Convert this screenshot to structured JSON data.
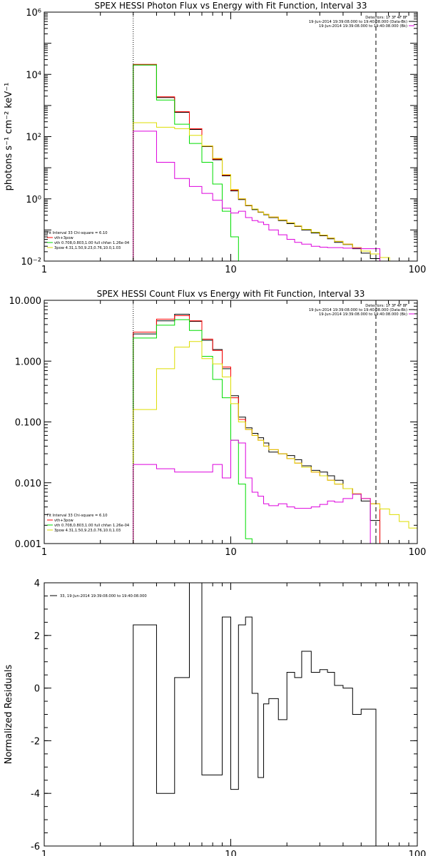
{
  "chart_data": [
    {
      "type": "line",
      "title": "SPEX HESSI Photon Flux vs Energy with Fit Function, Interval 33",
      "ylabel": "photons s⁻¹ cm⁻² keV⁻¹",
      "xscale": "log",
      "yscale": "log",
      "xlim": [
        1,
        100
      ],
      "ylim": [
        0.01,
        1000000
      ],
      "x_ticks": [
        "1",
        "10",
        "100"
      ],
      "y_ticks": [
        "10⁻²",
        "10⁰",
        "10²",
        "10⁴",
        "10⁶"
      ],
      "legend_right": [
        "Detectors: 1F 3F 4F 8F",
        "19-Jun-2014 19:39:08.000 to 19:40:08.000 (Data-Bk)",
        "19-Jun-2014 19:39:08.000 to 19:40:08.000 (Bk)"
      ],
      "legend_left": [
        "Fit Interval 33   Chi-square = 6.10",
        "vth+3pow",
        "vth 0.708,0.803,1.00  full chfan 1.26e-04",
        "3pow 4.31,1.50,9.23,0.76,10.0,1.03"
      ],
      "vlines": [
        3.0,
        60.0
      ],
      "edges": [
        3,
        4,
        5,
        6,
        7,
        8,
        9,
        10,
        11,
        12,
        13,
        14,
        15,
        16,
        18,
        20,
        22,
        24,
        27,
        30,
        33,
        36,
        40,
        45,
        50,
        56,
        63,
        71,
        80
      ],
      "series": [
        {
          "color": "#000000",
          "values": [
            20000,
            1800,
            600,
            170,
            48,
            18,
            5.5,
            1.8,
            0.95,
            0.6,
            0.45,
            0.37,
            0.31,
            0.25,
            0.2,
            0.16,
            0.13,
            0.1,
            0.08,
            0.065,
            0.052,
            0.04,
            0.034,
            0.025,
            0.018,
            0.012
          ]
        },
        {
          "color": "#ff0000",
          "values": [
            21000,
            1900,
            630,
            180,
            50,
            19,
            5.8,
            1.9,
            1.0,
            0.62,
            0.47,
            0.38,
            0.32,
            0.26,
            0.21,
            0.17,
            0.135,
            0.105,
            0.085,
            0.068,
            0.055,
            0.043,
            0.035,
            0.027,
            0.021,
            0.017
          ]
        },
        {
          "color": "#00dd00",
          "values": [
            20000,
            1500,
            250,
            60,
            15,
            3.0,
            0.4,
            0.06,
            0.01
          ]
        },
        {
          "color": "#dddd00",
          "values": [
            280,
            200,
            180,
            110,
            50,
            20,
            6.0,
            2.0,
            1.0,
            0.62,
            0.47,
            0.38,
            0.32,
            0.26,
            0.21,
            0.17,
            0.135,
            0.105,
            0.085,
            0.068,
            0.055,
            0.043,
            0.035,
            0.027,
            0.021,
            0.017,
            0.013,
            0.01
          ]
        },
        {
          "color": "#dd00dd",
          "values": [
            150,
            15,
            4.5,
            2.5,
            1.5,
            0.9,
            0.5,
            0.35,
            0.4,
            0.25,
            0.2,
            0.18,
            0.15,
            0.1,
            0.07,
            0.05,
            0.04,
            0.035,
            0.03,
            0.028,
            0.027,
            0.027,
            0.026,
            0.026,
            0.025,
            0.025
          ]
        }
      ]
    },
    {
      "type": "line",
      "title": "SPEX HESSI Count Flux vs Energy with Fit Function, Interval 33",
      "xscale": "log",
      "yscale": "log",
      "xlim": [
        1,
        100
      ],
      "ylim": [
        0.001,
        10
      ],
      "x_ticks": [
        "1",
        "10",
        "100"
      ],
      "y_ticks": [
        "0.001",
        "0.010",
        "0.100",
        "1.000",
        "10.000"
      ],
      "legend_right": [
        "Detectors: 1F 3F 4F 8F",
        "19-Jun-2014 19:39:08.000 to 19:40:08.000 (Data-Bk)",
        "19-Jun-2014 19:39:08.000 to 19:40:08.000 (Bk)"
      ],
      "legend_left": [
        "Fit Interval 33   Chi-square = 6.10",
        "vth+3pow",
        "vth 0.708,0.803,1.00  full chfan 1.26e-04",
        "3pow 4.31,1.50,9.23,0.76,10.0,1.03"
      ],
      "vlines": [
        3.0,
        60.0
      ],
      "edges": [
        3,
        4,
        5,
        6,
        7,
        8,
        9,
        10,
        11,
        12,
        13,
        14,
        15,
        16,
        18,
        20,
        22,
        24,
        27,
        30,
        33,
        36,
        40,
        45,
        50,
        56,
        63,
        71,
        80,
        90,
        100
      ],
      "series": [
        {
          "color": "#000000",
          "values": [
            2.8,
            4.6,
            5.9,
            4.5,
            2.2,
            1.55,
            0.75,
            0.27,
            0.12,
            0.08,
            0.065,
            0.055,
            0.045,
            0.032,
            0.03,
            0.028,
            0.024,
            0.019,
            0.016,
            0.015,
            0.013,
            0.011,
            0.008,
            0.0065,
            0.005,
            0.0024
          ]
        },
        {
          "color": "#ff0000",
          "values": [
            3.0,
            4.9,
            5.6,
            4.6,
            2.3,
            1.5,
            0.8,
            0.25,
            0.11,
            0.075,
            0.06,
            0.05,
            0.04,
            0.035,
            0.03,
            0.025,
            0.021,
            0.018,
            0.015,
            0.013,
            0.011,
            0.0095,
            0.008,
            0.0066,
            0.0055,
            0.0045
          ]
        },
        {
          "color": "#00dd00",
          "values": [
            2.4,
            3.9,
            4.8,
            3.2,
            1.2,
            0.5,
            0.25,
            0.05,
            0.0095,
            0.0012
          ]
        },
        {
          "color": "#dddd00",
          "values": [
            0.16,
            0.75,
            1.7,
            2.1,
            1.1,
            0.9,
            0.55,
            0.2,
            0.1,
            0.075,
            0.06,
            0.05,
            0.04,
            0.035,
            0.03,
            0.025,
            0.021,
            0.018,
            0.015,
            0.013,
            0.011,
            0.0095,
            0.008,
            0.0066,
            0.0055,
            0.0045,
            0.0037,
            0.003,
            0.0023,
            0.0018
          ]
        },
        {
          "color": "#dd00dd",
          "values": [
            0.02,
            0.017,
            0.015,
            0.015,
            0.015,
            0.02,
            0.012,
            0.05,
            0.045,
            0.012,
            0.007,
            0.006,
            0.0045,
            0.0042,
            0.0045,
            0.004,
            0.0038,
            0.0038,
            0.004,
            0.0044,
            0.005,
            0.0048,
            0.0055,
            0.0065,
            0.0055
          ]
        }
      ]
    },
    {
      "type": "line",
      "ylabel": "Normalized Residuals",
      "xscale": "log",
      "yscale": "linear",
      "xlim": [
        1,
        100
      ],
      "ylim": [
        -6,
        4
      ],
      "x_ticks": [
        "1",
        "10",
        "100"
      ],
      "y_ticks": [
        "-6",
        "-4",
        "-2",
        "0",
        "2",
        "4"
      ],
      "legend_left": [
        "33, 19-Jun-2014 19:39:08.000 to 19:40:08.000"
      ],
      "edges": [
        3,
        4,
        5,
        6,
        7,
        8,
        9,
        10,
        11,
        12,
        13,
        14,
        15,
        16,
        18,
        20,
        22,
        24,
        27,
        30,
        33,
        36,
        40,
        45,
        50,
        56,
        60
      ],
      "series": [
        {
          "color": "#000000",
          "values": [
            2.4,
            -4.0,
            0.4,
            4.0,
            -3.3,
            -3.3,
            2.7,
            -3.85,
            2.4,
            2.7,
            -0.2,
            -3.4,
            -0.6,
            -0.4,
            -1.2,
            0.6,
            0.4,
            1.4,
            0.6,
            0.7,
            0.6,
            0.1,
            0.0,
            -1.0,
            -0.8,
            -0.8
          ]
        }
      ]
    }
  ]
}
